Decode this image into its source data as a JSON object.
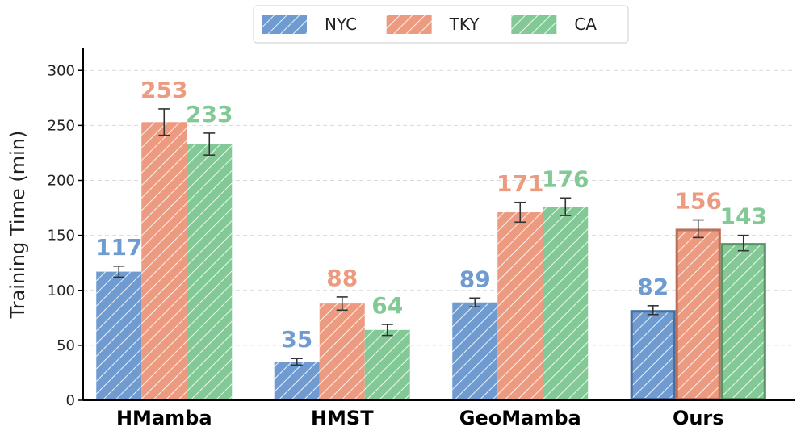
{
  "chart_data": {
    "type": "bar",
    "title": "",
    "xlabel": "",
    "ylabel": "Training Time (min)",
    "ylim": [
      0,
      320
    ],
    "yticks": [
      0,
      50,
      100,
      150,
      200,
      250,
      300
    ],
    "grid": true,
    "legend_position": "top-center",
    "categories": [
      "HMamba",
      "HMST",
      "GeoMamba",
      "Ours"
    ],
    "series": [
      {
        "name": "NYC",
        "color": "#6f9bd1",
        "values": [
          117,
          35,
          89,
          82
        ],
        "errors": [
          5,
          3,
          4,
          4
        ]
      },
      {
        "name": "TKY",
        "color": "#ec9a80",
        "values": [
          253,
          88,
          171,
          156
        ],
        "errors": [
          12,
          6,
          9,
          8
        ]
      },
      {
        "name": "CA",
        "color": "#82c995",
        "values": [
          233,
          64,
          176,
          143
        ],
        "errors": [
          10,
          5,
          8,
          7
        ]
      }
    ],
    "highlight_category": "Ours"
  }
}
